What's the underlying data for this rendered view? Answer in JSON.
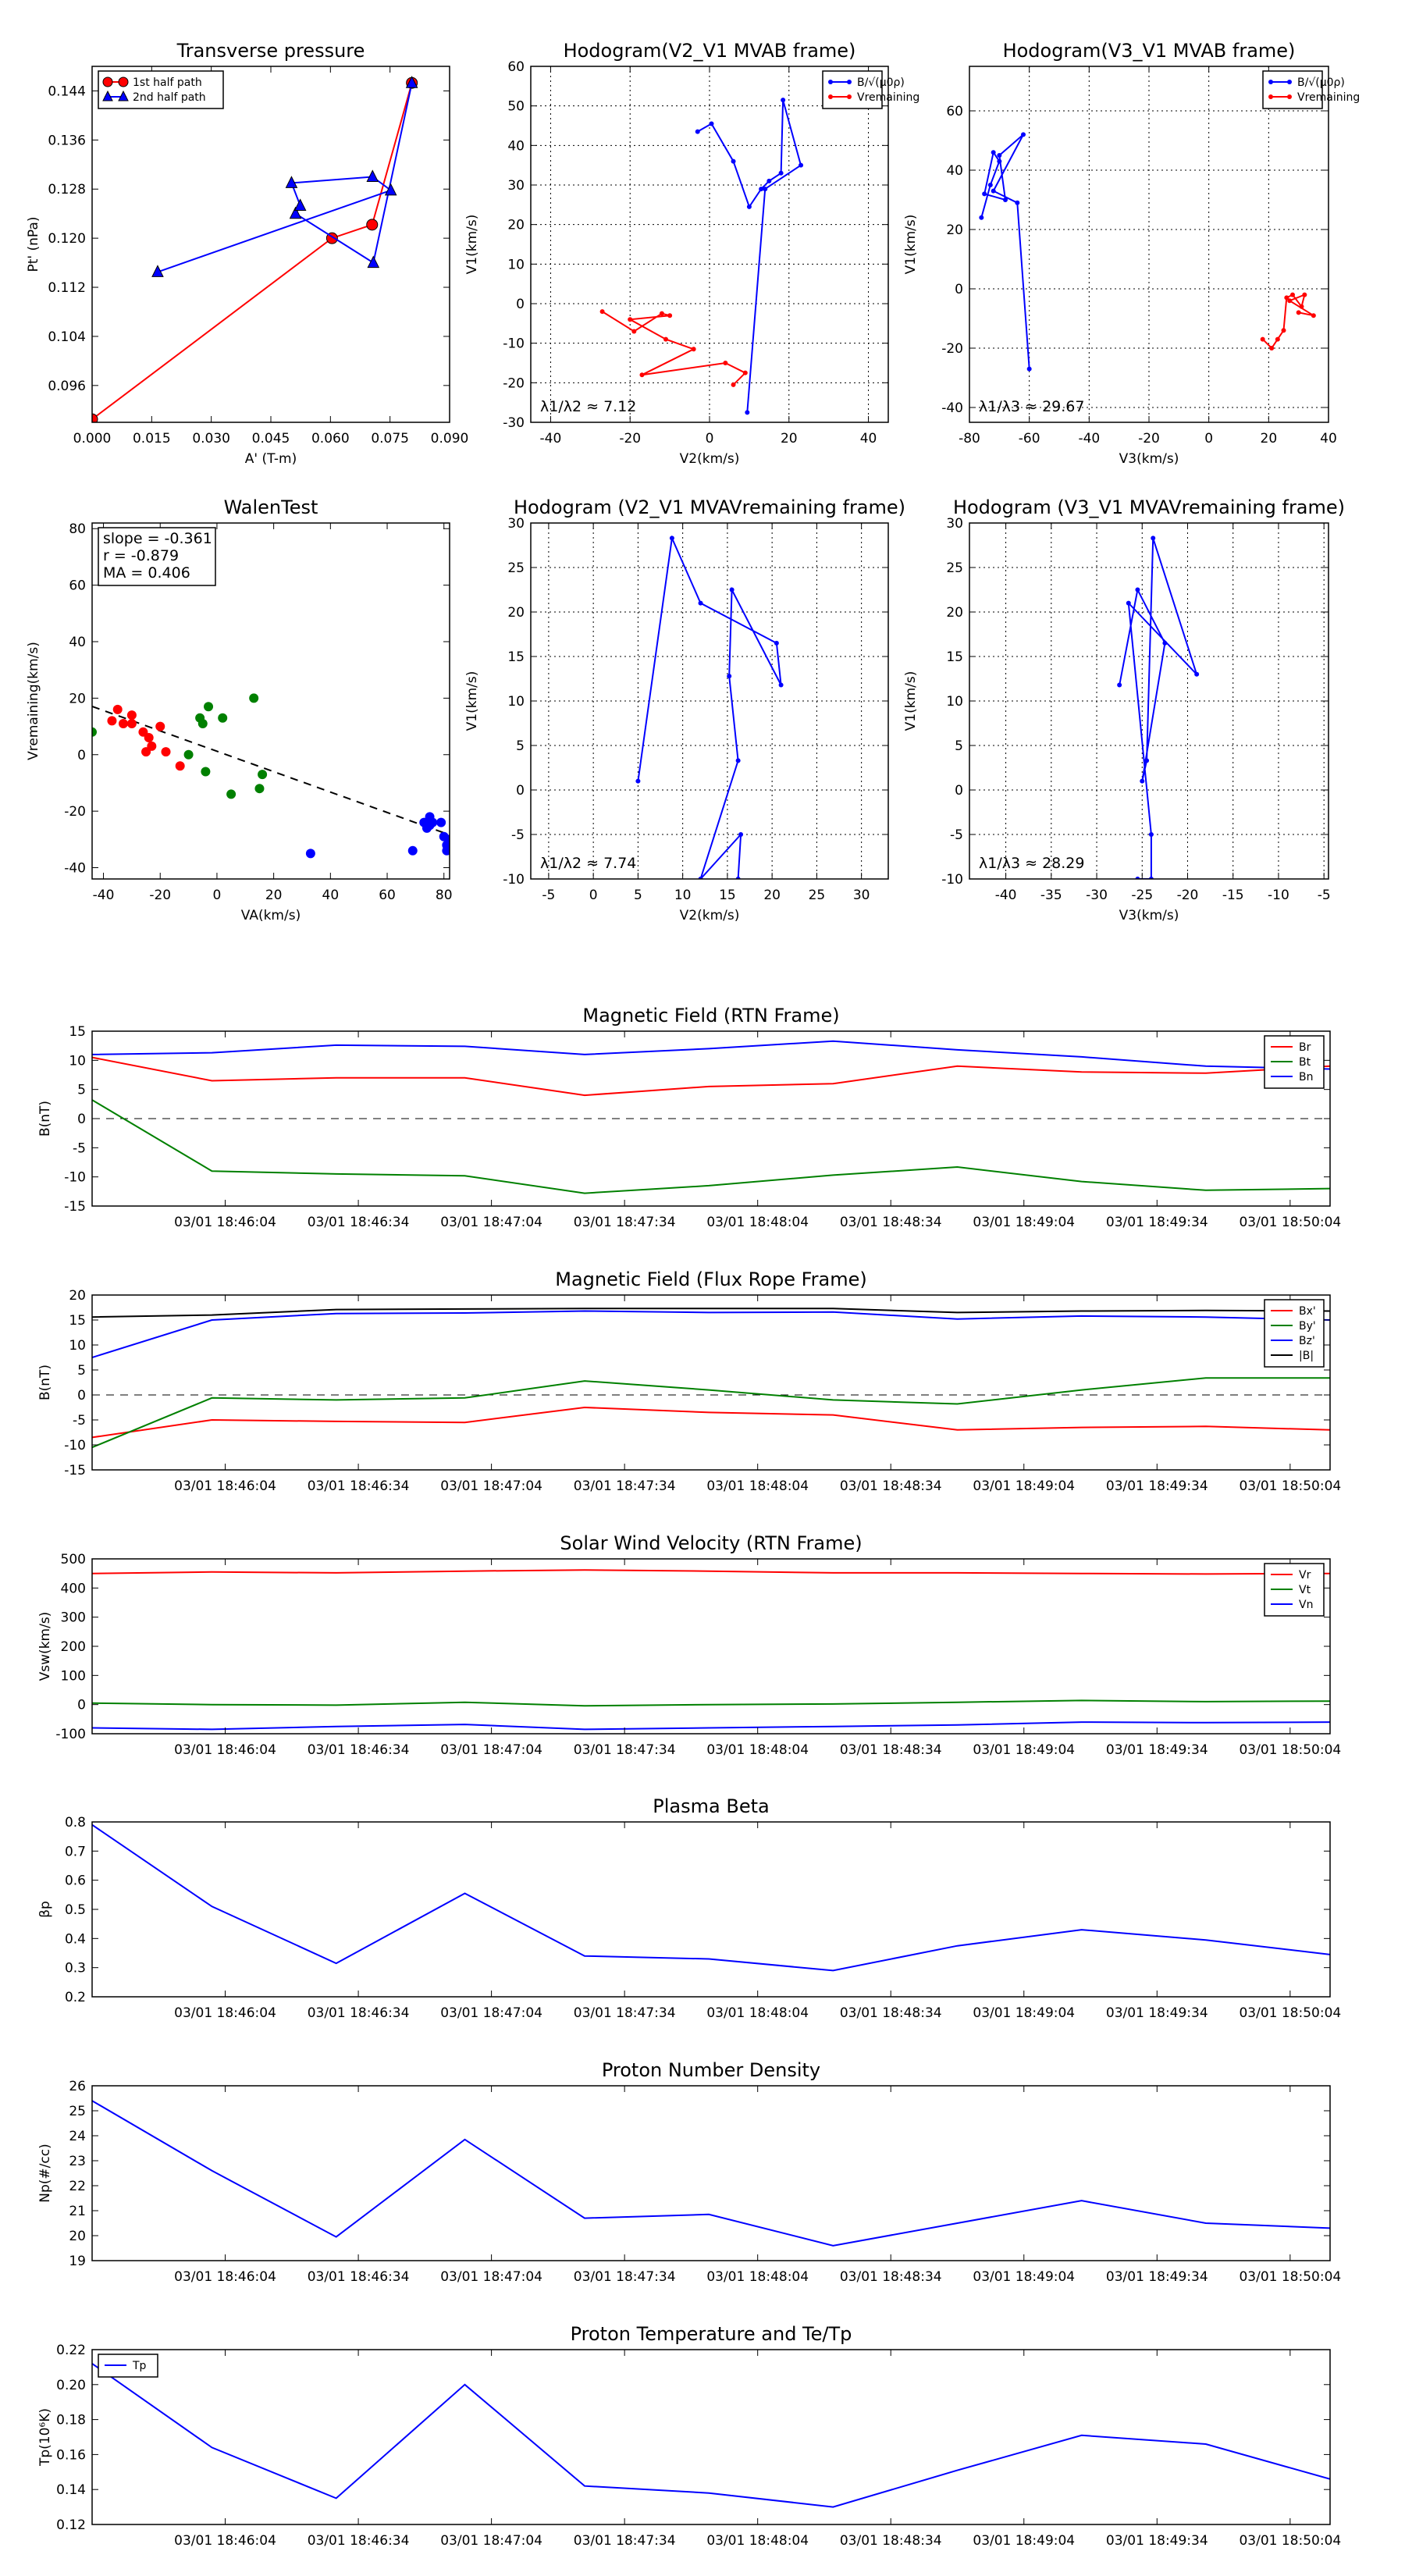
{
  "chart_data": [
    {
      "id": "transverse_pressure",
      "type": "scatter",
      "title": "Transverse pressure",
      "xlabel": "A' (T-m)",
      "ylabel": "Pt' (nPa)",
      "xlim": [
        0,
        0.09
      ],
      "ylim": [
        0.09,
        0.148
      ],
      "xticks": [
        0.0,
        0.015,
        0.03,
        0.045,
        0.06,
        0.075,
        0.09
      ],
      "yticks": [
        0.096,
        0.104,
        0.112,
        0.12,
        0.128,
        0.136,
        0.144
      ],
      "xtick_labels": [
        "0.000",
        "0.015",
        "0.030",
        "0.045",
        "0.060",
        "0.075",
        "0.090"
      ],
      "ytick_labels": [
        "0.096",
        "0.104",
        "0.112",
        "0.120",
        "0.128",
        "0.136",
        "0.144"
      ],
      "grid": false,
      "legend": "top-left",
      "series": [
        {
          "name": "1st half path",
          "color": "#ff0000",
          "marker": "circle",
          "x": [
            0.0,
            0.0604,
            0.0705,
            0.0805
          ],
          "y": [
            0.0905,
            0.12,
            0.1222,
            0.1453
          ]
        },
        {
          "name": "2nd half path",
          "color": "#0000ff",
          "marker": "triangle",
          "x": [
            0.0805,
            0.0708,
            0.0512,
            0.0524,
            0.0502,
            0.0706,
            0.0752,
            0.0165
          ],
          "y": [
            0.1453,
            0.116,
            0.124,
            0.1253,
            0.129,
            0.13,
            0.1278,
            0.1145
          ]
        }
      ]
    },
    {
      "id": "hodogram_v2_v1_mvab",
      "type": "line",
      "title": "Hodogram(V2_V1 MVAB frame)",
      "xlabel": "V2(km/s)",
      "ylabel": "V1(km/s)",
      "xlim": [
        -45,
        45
      ],
      "ylim": [
        -30,
        60
      ],
      "xticks": [
        -40,
        -20,
        0,
        20,
        40
      ],
      "yticks": [
        -30,
        -20,
        -10,
        0,
        10,
        20,
        30,
        40,
        50,
        60
      ],
      "grid": true,
      "legend": "top-right",
      "annotation": "λ1/λ2 ≈ 7.12",
      "series": [
        {
          "name": "B/√(μ0ρ)",
          "color": "#0000ff",
          "x": [
            -3,
            0.5,
            6,
            10,
            13,
            15,
            18,
            18.5,
            23,
            14,
            9.5
          ],
          "y": [
            43.5,
            45.5,
            36,
            24.5,
            29,
            31,
            33,
            51.5,
            35,
            29,
            -27.5
          ]
        },
        {
          "name": "Vremaining",
          "color": "#ff0000",
          "x": [
            -27,
            -19,
            -12,
            -10,
            -20,
            -11,
            -4,
            -17,
            4,
            9,
            6
          ],
          "y": [
            -2,
            -7,
            -2.5,
            -3,
            -4,
            -9,
            -11.5,
            -18,
            -15,
            -17.5,
            -20.5
          ]
        }
      ]
    },
    {
      "id": "hodogram_v3_v1_mvab",
      "type": "line",
      "title": "Hodogram(V3_V1 MVAB frame)",
      "xlabel": "V3(km/s)",
      "ylabel": "V1(km/s)",
      "xlim": [
        -80,
        40
      ],
      "ylim": [
        -45,
        75
      ],
      "xticks": [
        -80,
        -60,
        -40,
        -20,
        0,
        20,
        40
      ],
      "yticks": [
        -40,
        -20,
        0,
        20,
        40,
        60
      ],
      "grid": true,
      "legend": "top-right",
      "annotation": "λ1/λ3 ≈ 29.67",
      "series": [
        {
          "name": "B/√(μ0ρ)",
          "color": "#0000ff",
          "x": [
            -76,
            -73,
            -70,
            -72,
            -75,
            -68,
            -70,
            -62,
            -72,
            -64,
            -60
          ],
          "y": [
            24,
            35,
            43,
            46,
            32,
            30,
            45,
            52,
            33,
            29,
            -27
          ]
        },
        {
          "name": "Vremaining",
          "color": "#ff0000",
          "x": [
            18,
            21,
            23,
            25,
            26,
            28,
            31,
            32,
            27,
            35,
            30
          ],
          "y": [
            -17,
            -20,
            -17,
            -14,
            -3,
            -2,
            -6,
            -2,
            -4,
            -9,
            -8
          ]
        }
      ]
    },
    {
      "id": "walen_test",
      "type": "scatter",
      "title": "WalenTest",
      "xlabel": "VA(km/s)",
      "ylabel": "Vremaining(km/s)",
      "xlim": [
        -44,
        82
      ],
      "ylim": [
        -44,
        82
      ],
      "xticks": [
        -40,
        -20,
        0,
        20,
        40,
        60,
        80
      ],
      "yticks": [
        -40,
        -20,
        0,
        20,
        40,
        60,
        80
      ],
      "grid": false,
      "annotation": [
        "slope = -0.361",
        "r = -0.879",
        "MA = 0.406"
      ],
      "fit_line": {
        "slope": -0.361,
        "intercept": 1.2,
        "color": "#000000"
      },
      "series": [
        {
          "name": "",
          "color": "#ff0000",
          "x": [
            -37,
            -35,
            -33,
            -30,
            -30,
            -26,
            -25,
            -24,
            -23,
            -20,
            -18,
            -13
          ],
          "y": [
            12,
            16,
            11,
            14,
            11,
            8,
            1,
            6,
            3,
            10,
            1,
            -4
          ]
        },
        {
          "name": "",
          "color": "#008000",
          "x": [
            -44,
            -10,
            -6,
            -5,
            -4,
            -3,
            2,
            5,
            13,
            15,
            16
          ],
          "y": [
            8,
            0,
            13,
            11,
            -6,
            17,
            13,
            -14,
            20,
            -12,
            -7
          ]
        },
        {
          "name": "",
          "color": "#0000ff",
          "x": [
            33,
            69,
            73,
            74,
            75,
            75,
            76,
            79,
            80,
            81,
            81,
            82
          ],
          "y": [
            -35,
            -34,
            -24,
            -26,
            -22,
            -25,
            -24,
            -24,
            -29,
            -34,
            -32,
            -30
          ]
        }
      ]
    },
    {
      "id": "hodogram_v2_v1_mvav",
      "type": "line",
      "title": "Hodogram (V2_V1 MVAVremaining frame)",
      "xlabel": "V2(km/s)",
      "ylabel": "V1(km/s)",
      "xlim": [
        -7,
        33
      ],
      "ylim": [
        -10,
        30
      ],
      "xticks": [
        -5,
        0,
        5,
        10,
        15,
        20,
        25,
        30
      ],
      "yticks": [
        -10,
        -5,
        0,
        5,
        10,
        15,
        20,
        25,
        30
      ],
      "grid": true,
      "annotation": "λ1/λ2 ≈ 7.74",
      "series": [
        {
          "name": "",
          "color": "#0000ff",
          "x": [
            5,
            8.8,
            12,
            20.5,
            21,
            15.5,
            15.2,
            16.2,
            12,
            16.5,
            16.2
          ],
          "y": [
            1,
            28.3,
            21,
            16.5,
            11.8,
            22.5,
            12.8,
            3.3,
            -10,
            -5,
            -10
          ]
        }
      ]
    },
    {
      "id": "hodogram_v3_v1_mvav",
      "type": "line",
      "title": "Hodogram (V3_V1 MVAVremaining frame)",
      "xlabel": "V3(km/s)",
      "ylabel": "V1(km/s)",
      "xlim": [
        -44,
        -4.5
      ],
      "ylim": [
        -10,
        30
      ],
      "xticks": [
        -40,
        -35,
        -30,
        -25,
        -20,
        -15,
        -10,
        -5
      ],
      "yticks": [
        -10,
        -5,
        0,
        5,
        10,
        15,
        20,
        25,
        30
      ],
      "grid": true,
      "annotation": "λ1/λ3 ≈ 28.29",
      "series": [
        {
          "name": "",
          "color": "#0000ff",
          "x": [
            -27.5,
            -25.5,
            -22.5,
            -25,
            -24.5,
            -23.8,
            -19,
            -26.5,
            -24,
            -24,
            -25.5
          ],
          "y": [
            11.8,
            22.5,
            16.5,
            1,
            3.3,
            28.3,
            13,
            21,
            -5,
            -10,
            -10
          ]
        }
      ]
    },
    {
      "id": "magnetic_field_rtn",
      "type": "line",
      "title": "Magnetic Field (RTN Frame)",
      "ylabel": "B(nT)",
      "xticklabels": [
        "03/01 18:46:04",
        "03/01 18:46:34",
        "03/01 18:47:04",
        "03/01 18:47:34",
        "03/01 18:48:04",
        "03/01 18:48:34",
        "03/01 18:49:04",
        "03/01 18:49:34",
        "03/01 18:50:04"
      ],
      "xlim": [
        0,
        279
      ],
      "xtick_positions": [
        30,
        60,
        90,
        120,
        150,
        180,
        210,
        240,
        270
      ],
      "ylim": [
        -15,
        15
      ],
      "yticks": [
        -15,
        -10,
        -5,
        0,
        5,
        10,
        15
      ],
      "legend": "top-right",
      "zero_line": true,
      "x": [
        0,
        27,
        55,
        84,
        111,
        139,
        167,
        195,
        223,
        251,
        279
      ],
      "series": [
        {
          "name": "Br",
          "color": "#ff0000",
          "values": [
            10.5,
            6.5,
            7,
            7,
            4,
            5.5,
            6,
            9,
            8,
            7.8,
            9
          ]
        },
        {
          "name": "Bt",
          "color": "#008000",
          "values": [
            3.2,
            -9,
            -9.5,
            -9.8,
            -12.8,
            -11.5,
            -9.7,
            -8.3,
            -10.8,
            -12.3,
            -12
          ]
        },
        {
          "name": "Bn",
          "color": "#0000ff",
          "values": [
            11,
            11.3,
            12.6,
            12.4,
            11,
            12,
            13.3,
            11.8,
            10.6,
            9,
            8.5
          ]
        }
      ]
    },
    {
      "id": "magnetic_field_flux_rope",
      "type": "line",
      "title": "Magnetic Field (Flux Rope Frame)",
      "ylabel": "B(nT)",
      "xticklabels": [
        "03/01 18:46:04",
        "03/01 18:46:34",
        "03/01 18:47:04",
        "03/01 18:47:34",
        "03/01 18:48:04",
        "03/01 18:48:34",
        "03/01 18:49:04",
        "03/01 18:49:34",
        "03/01 18:50:04"
      ],
      "xlim": [
        0,
        279
      ],
      "xtick_positions": [
        30,
        60,
        90,
        120,
        150,
        180,
        210,
        240,
        270
      ],
      "ylim": [
        -15,
        20
      ],
      "yticks": [
        -15,
        -10,
        -5,
        0,
        5,
        10,
        15,
        20
      ],
      "legend": "top-right",
      "zero_line": true,
      "x": [
        0,
        27,
        55,
        84,
        111,
        139,
        167,
        195,
        223,
        251,
        279
      ],
      "series": [
        {
          "name": "Bx'",
          "color": "#ff0000",
          "values": [
            -8.5,
            -5,
            -5.3,
            -5.5,
            -2.5,
            -3.5,
            -4,
            -7,
            -6.5,
            -6.3,
            -7
          ]
        },
        {
          "name": "By'",
          "color": "#008000",
          "values": [
            -10.5,
            -0.6,
            -1,
            -0.6,
            2.8,
            1,
            -1,
            -1.8,
            1,
            3.4,
            3.4
          ]
        },
        {
          "name": "Bz'",
          "color": "#0000ff",
          "values": [
            7.5,
            15,
            16.3,
            16.4,
            16.8,
            16.5,
            16.6,
            15.2,
            15.8,
            15.6,
            15
          ]
        },
        {
          "name": "|B|",
          "color": "#000000",
          "values": [
            15.6,
            16,
            17.1,
            17.2,
            17.3,
            17.3,
            17.3,
            16.5,
            16.8,
            16.9,
            16.8
          ]
        }
      ]
    },
    {
      "id": "solar_wind_velocity",
      "type": "line",
      "title": "Solar Wind Velocity (RTN Frame)",
      "ylabel": "Vsw(km/s)",
      "xticklabels": [
        "03/01 18:46:04",
        "03/01 18:46:34",
        "03/01 18:47:04",
        "03/01 18:47:34",
        "03/01 18:48:04",
        "03/01 18:48:34",
        "03/01 18:49:04",
        "03/01 18:49:34",
        "03/01 18:50:04"
      ],
      "xlim": [
        0,
        279
      ],
      "xtick_positions": [
        30,
        60,
        90,
        120,
        150,
        180,
        210,
        240,
        270
      ],
      "ylim": [
        -100,
        500
      ],
      "yticks": [
        -100,
        0,
        100,
        200,
        300,
        400,
        500
      ],
      "legend": "top-right",
      "x": [
        0,
        27,
        55,
        84,
        111,
        139,
        167,
        195,
        223,
        251,
        279
      ],
      "series": [
        {
          "name": "Vr",
          "color": "#ff0000",
          "values": [
            450,
            455,
            452,
            458,
            462,
            458,
            452,
            452,
            450,
            448,
            450
          ]
        },
        {
          "name": "Vt",
          "color": "#008000",
          "values": [
            5,
            0,
            -2,
            8,
            -4,
            0,
            2,
            8,
            14,
            10,
            12
          ]
        },
        {
          "name": "Vn",
          "color": "#0000ff",
          "values": [
            -80,
            -85,
            -75,
            -68,
            -85,
            -80,
            -75,
            -70,
            -60,
            -62,
            -60
          ]
        }
      ]
    },
    {
      "id": "plasma_beta",
      "type": "line",
      "title": "Plasma Beta",
      "ylabel": "βp",
      "xticklabels": [
        "03/01 18:46:04",
        "03/01 18:46:34",
        "03/01 18:47:04",
        "03/01 18:47:34",
        "03/01 18:48:04",
        "03/01 18:48:34",
        "03/01 18:49:04",
        "03/01 18:49:34",
        "03/01 18:50:04"
      ],
      "xlim": [
        0,
        279
      ],
      "xtick_positions": [
        30,
        60,
        90,
        120,
        150,
        180,
        210,
        240,
        270
      ],
      "ylim": [
        0.2,
        0.8
      ],
      "yticks": [
        0.2,
        0.3,
        0.4,
        0.5,
        0.6,
        0.7,
        0.8
      ],
      "x": [
        0,
        27,
        55,
        84,
        111,
        139,
        167,
        195,
        223,
        251,
        279
      ],
      "series": [
        {
          "name": "",
          "color": "#0000ff",
          "values": [
            0.79,
            0.51,
            0.315,
            0.555,
            0.34,
            0.33,
            0.29,
            0.375,
            0.43,
            0.395,
            0.345
          ]
        }
      ]
    },
    {
      "id": "proton_number_density",
      "type": "line",
      "title": "Proton Number Density",
      "ylabel": "Np(#/cc)",
      "xticklabels": [
        "03/01 18:46:04",
        "03/01 18:46:34",
        "03/01 18:47:04",
        "03/01 18:47:34",
        "03/01 18:48:04",
        "03/01 18:48:34",
        "03/01 18:49:04",
        "03/01 18:49:34",
        "03/01 18:50:04"
      ],
      "xlim": [
        0,
        279
      ],
      "xtick_positions": [
        30,
        60,
        90,
        120,
        150,
        180,
        210,
        240,
        270
      ],
      "ylim": [
        19,
        26
      ],
      "yticks": [
        19,
        20,
        21,
        22,
        23,
        24,
        25,
        26
      ],
      "x": [
        0,
        27,
        55,
        84,
        111,
        139,
        167,
        195,
        223,
        251,
        279
      ],
      "series": [
        {
          "name": "",
          "color": "#0000ff",
          "values": [
            25.4,
            22.6,
            19.95,
            23.85,
            20.7,
            20.85,
            19.6,
            20.5,
            21.4,
            20.5,
            20.3
          ]
        }
      ]
    },
    {
      "id": "proton_temperature",
      "type": "line",
      "title": "Proton Temperature and Te/Tp",
      "ylabel": "Tp(10⁶K)",
      "xticklabels": [
        "03/01 18:46:04",
        "03/01 18:46:34",
        "03/01 18:47:04",
        "03/01 18:47:34",
        "03/01 18:48:04",
        "03/01 18:48:34",
        "03/01 18:49:04",
        "03/01 18:49:34",
        "03/01 18:50:04"
      ],
      "xlim": [
        0,
        279
      ],
      "xtick_positions": [
        30,
        60,
        90,
        120,
        150,
        180,
        210,
        240,
        270
      ],
      "ylim": [
        0.12,
        0.22
      ],
      "yticks": [
        0.12,
        0.14,
        0.16,
        0.18,
        0.2,
        0.22
      ],
      "legend": "top-left",
      "x": [
        0,
        27,
        55,
        84,
        111,
        139,
        167,
        195,
        223,
        251,
        279
      ],
      "series": [
        {
          "name": "Tp",
          "color": "#0000ff",
          "values": [
            0.212,
            0.164,
            0.135,
            0.2,
            0.142,
            0.138,
            0.13,
            0.151,
            0.171,
            0.166,
            0.146
          ]
        }
      ]
    }
  ]
}
